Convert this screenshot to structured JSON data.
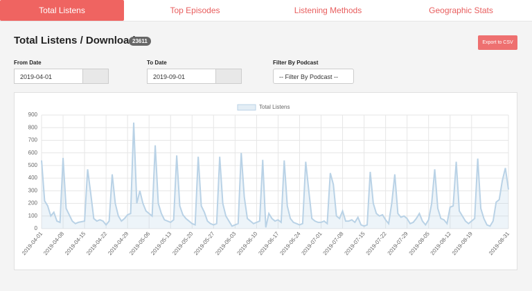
{
  "tabs": [
    "Total Listens",
    "Top Episodes",
    "Listening Methods",
    "Geographic Stats"
  ],
  "header": {
    "title": "Total Listens / Downloads",
    "badge": "23611",
    "button": "Export to CSV"
  },
  "filters": {
    "from_label": "From Date",
    "from_value": "2019-04-01",
    "to_label": "To Date",
    "to_value": "2019-09-01",
    "podcast_label": "Filter By Podcast",
    "podcast_value": "-- Filter By Podcast --"
  },
  "chart_data": {
    "type": "line",
    "categories": [
      "2019-04-01",
      null,
      null,
      null,
      null,
      null,
      null,
      "2019-04-08",
      null,
      null,
      null,
      null,
      null,
      null,
      "2019-04-15",
      null,
      null,
      null,
      null,
      null,
      null,
      "2019-04-22",
      null,
      null,
      null,
      null,
      null,
      null,
      "2019-04-29",
      null,
      null,
      null,
      null,
      null,
      null,
      "2019-05-06",
      null,
      null,
      null,
      null,
      null,
      null,
      "2019-05-13",
      null,
      null,
      null,
      null,
      null,
      null,
      "2019-05-20",
      null,
      null,
      null,
      null,
      null,
      null,
      "2019-05-27",
      null,
      null,
      null,
      null,
      null,
      null,
      "2019-06-03",
      null,
      null,
      null,
      null,
      null,
      null,
      "2019-06-10",
      null,
      null,
      null,
      null,
      null,
      null,
      "2019-06-17",
      null,
      null,
      null,
      null,
      null,
      null,
      "2019-06-24",
      null,
      null,
      null,
      null,
      null,
      null,
      "2019-07-01",
      null,
      null,
      null,
      null,
      null,
      null,
      "2019-07-08",
      null,
      null,
      null,
      null,
      null,
      null,
      "2019-07-15",
      null,
      null,
      null,
      null,
      null,
      null,
      "2019-07-22",
      null,
      null,
      null,
      null,
      null,
      null,
      "2019-07-29",
      null,
      null,
      null,
      null,
      null,
      null,
      "2019-08-05",
      null,
      null,
      null,
      null,
      null,
      null,
      "2019-08-12",
      null,
      null,
      null,
      null,
      null,
      null,
      "2019-08-19",
      null,
      null,
      null,
      null,
      null,
      null,
      null,
      null,
      null,
      null,
      null,
      "2019-08-31"
    ],
    "series": [
      {
        "name": "Total Listens",
        "color": "#b9d2e6",
        "values": [
          540,
          220,
          180,
          100,
          130,
          60,
          50,
          560,
          160,
          110,
          60,
          40,
          50,
          55,
          60,
          470,
          280,
          80,
          60,
          70,
          60,
          30,
          60,
          430,
          200,
          100,
          60,
          80,
          110,
          120,
          840,
          200,
          300,
          200,
          140,
          120,
          100,
          660,
          200,
          120,
          70,
          60,
          50,
          70,
          580,
          180,
          110,
          80,
          60,
          40,
          30,
          570,
          180,
          130,
          60,
          40,
          30,
          40,
          570,
          200,
          100,
          60,
          20,
          30,
          40,
          600,
          250,
          80,
          60,
          40,
          50,
          60,
          545,
          10,
          120,
          80,
          60,
          70,
          50,
          540,
          180,
          80,
          50,
          40,
          30,
          40,
          530,
          300,
          80,
          60,
          50,
          50,
          60,
          40,
          440,
          350,
          100,
          80,
          140,
          60,
          60,
          70,
          50,
          90,
          30,
          20,
          30,
          450,
          200,
          120,
          100,
          110,
          70,
          40,
          200,
          430,
          120,
          90,
          100,
          80,
          40,
          50,
          80,
          120,
          60,
          30,
          70,
          200,
          470,
          160,
          80,
          70,
          40,
          170,
          180,
          530,
          140,
          100,
          60,
          40,
          60,
          80,
          555,
          160,
          80,
          30,
          20,
          60,
          210,
          230,
          380,
          480,
          310
        ]
      }
    ],
    "ylim": [
      0,
      900
    ],
    "yticks": [
      0,
      100,
      200,
      300,
      400,
      500,
      600,
      700,
      800,
      900
    ],
    "grid": true,
    "legend": "top"
  }
}
